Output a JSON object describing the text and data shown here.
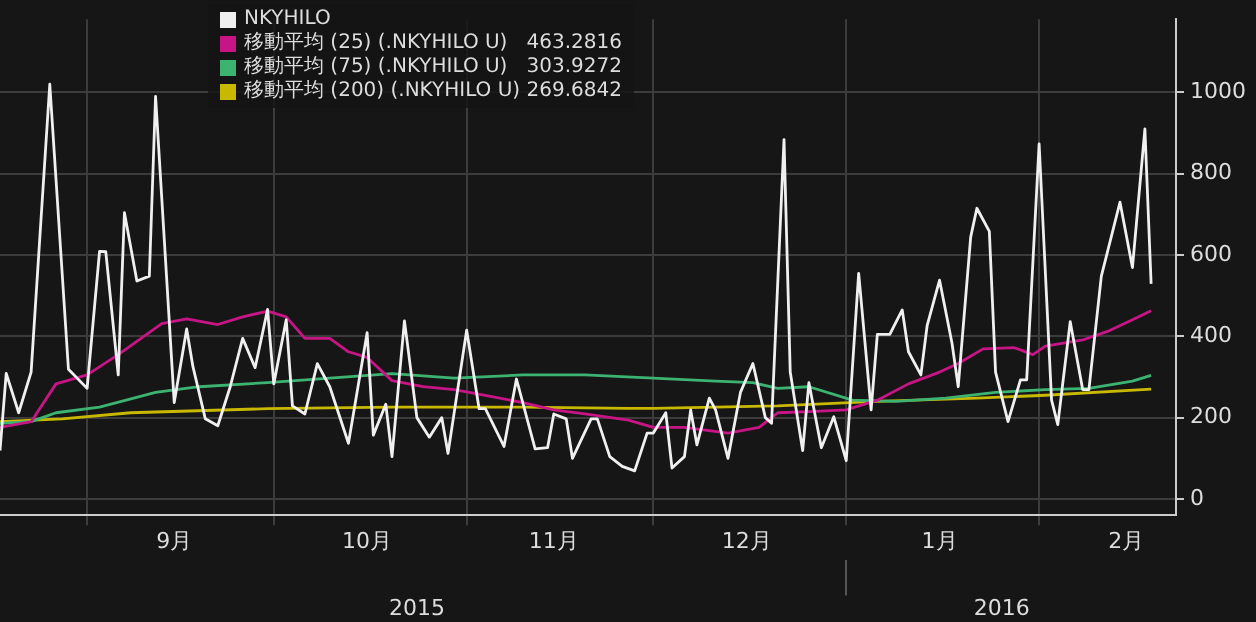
{
  "chart_data": {
    "type": "line",
    "legend": "top",
    "grid": true,
    "marker": "none",
    "xlim": [
      "2015-08-18",
      "2016-02-23"
    ],
    "xticks": [
      {
        "value": "2015-09-01",
        "label": null
      },
      {
        "value": "2015-09-15",
        "label": "9月"
      },
      {
        "value": "2015-10-01",
        "label": null
      },
      {
        "value": "2015-10-16",
        "label": "10月"
      },
      {
        "value": "2015-11-01",
        "label": null
      },
      {
        "value": "2015-11-15",
        "label": "11月"
      },
      {
        "value": "2015-12-01",
        "label": null
      },
      {
        "value": "2015-12-16",
        "label": "12月"
      },
      {
        "value": "2016-01-01",
        "label": null
      },
      {
        "value": "2016-01-16",
        "label": "1月"
      },
      {
        "value": "2016-02-01",
        "label": null
      },
      {
        "value": "2016-02-15",
        "label": "2月"
      }
    ],
    "x2lim": [
      "2015-08-18",
      "2016-02-23"
    ],
    "x2ticks": [
      {
        "value": "2015-10-24",
        "label": "2015"
      },
      {
        "value": "2016-01-01",
        "label": null
      },
      {
        "value": "2016-01-26",
        "label": "2016"
      }
    ],
    "ylim": [
      -40,
      1180
    ],
    "yticks": [
      0,
      200,
      400,
      600,
      800,
      1000
    ],
    "series": [
      {
        "name": "NKYHILO",
        "color": "#f0f0f0",
        "x": [
          "2015-08-18",
          "2015-08-19",
          "2015-08-21",
          "2015-08-23",
          "2015-08-26",
          "2015-08-29",
          "2015-09-01",
          "2015-09-03",
          "2015-09-04",
          "2015-09-06",
          "2015-09-07",
          "2015-09-09",
          "2015-09-11",
          "2015-09-12",
          "2015-09-15",
          "2015-09-17",
          "2015-09-18",
          "2015-09-20",
          "2015-09-22",
          "2015-09-24",
          "2015-09-26",
          "2015-09-28",
          "2015-09-30",
          "2015-10-01",
          "2015-10-03",
          "2015-10-04",
          "2015-10-06",
          "2015-10-08",
          "2015-10-10",
          "2015-10-13",
          "2015-10-16",
          "2015-10-17",
          "2015-10-19",
          "2015-10-20",
          "2015-10-22",
          "2015-10-24",
          "2015-10-26",
          "2015-10-28",
          "2015-10-29",
          "2015-11-01",
          "2015-11-03",
          "2015-11-04",
          "2015-11-07",
          "2015-11-09",
          "2015-11-12",
          "2015-11-14",
          "2015-11-15",
          "2015-11-17",
          "2015-11-18",
          "2015-11-21",
          "2015-11-22",
          "2015-11-24",
          "2015-11-26",
          "2015-11-28",
          "2015-11-30",
          "2015-12-01",
          "2015-12-03",
          "2015-12-04",
          "2015-12-06",
          "2015-12-07",
          "2015-12-08",
          "2015-12-10",
          "2015-12-11",
          "2015-12-13",
          "2015-12-15",
          "2015-12-17",
          "2015-12-19",
          "2015-12-20",
          "2015-12-22",
          "2015-12-23",
          "2015-12-25",
          "2015-12-26",
          "2015-12-28",
          "2015-12-30",
          "2016-01-01",
          "2016-01-03",
          "2016-01-05",
          "2016-01-06",
          "2016-01-08",
          "2016-01-10",
          "2016-01-11",
          "2016-01-13",
          "2016-01-14",
          "2016-01-16",
          "2016-01-18",
          "2016-01-19",
          "2016-01-21",
          "2016-01-22",
          "2016-01-24",
          "2016-01-25",
          "2016-01-27",
          "2016-01-29",
          "2016-01-30",
          "2016-02-01",
          "2016-02-03",
          "2016-02-04",
          "2016-02-06",
          "2016-02-08",
          "2016-02-09",
          "2016-02-11",
          "2016-02-14",
          "2016-02-16",
          "2016-02-18",
          "2016-02-19"
        ],
        "values": [
          119,
          309,
          212,
          312,
          1020,
          319,
          272,
          609,
          608,
          305,
          704,
          536,
          548,
          990,
          237,
          418,
          326,
          197,
          180,
          276,
          395,
          323,
          466,
          283,
          441,
          229,
          209,
          333,
          276,
          137,
          409,
          157,
          233,
          104,
          438,
          200,
          152,
          200,
          112,
          415,
          222,
          222,
          129,
          295,
          123,
          126,
          209,
          197,
          100,
          197,
          197,
          104,
          80,
          69,
          162,
          162,
          212,
          76,
          104,
          219,
          133,
          248,
          219,
          100,
          262,
          333,
          200,
          186,
          884,
          312,
          119,
          286,
          126,
          202,
          94,
          555,
          219,
          405,
          405,
          465,
          362,
          305,
          426,
          538,
          383,
          276,
          644,
          715,
          658,
          312,
          190,
          293,
          293,
          873,
          243,
          183,
          436,
          269,
          269,
          548,
          730,
          569,
          910,
          529
        ]
      },
      {
        "name": "移動平均 (25) (.NKYHILO U)   463.2816",
        "color": "#c71585",
        "x": [
          "2015-08-18",
          "2015-08-23",
          "2015-08-27",
          "2015-09-01",
          "2015-09-06",
          "2015-09-13",
          "2015-09-17",
          "2015-09-22",
          "2015-09-26",
          "2015-09-30",
          "2015-10-03",
          "2015-10-06",
          "2015-10-10",
          "2015-10-13",
          "2015-10-16",
          "2015-10-20",
          "2015-10-25",
          "2015-10-30",
          "2015-11-04",
          "2015-11-10",
          "2015-11-15",
          "2015-11-20",
          "2015-11-27",
          "2015-12-01",
          "2015-12-06",
          "2015-12-13",
          "2015-12-18",
          "2015-12-21",
          "2015-12-26",
          "2016-01-01",
          "2016-01-06",
          "2016-01-11",
          "2016-01-16",
          "2016-01-19",
          "2016-01-23",
          "2016-01-28",
          "2016-01-31",
          "2016-02-02",
          "2016-02-08",
          "2016-02-12",
          "2016-02-16",
          "2016-02-19"
        ],
        "values": [
          176,
          190,
          283,
          305,
          355,
          431,
          443,
          429,
          448,
          462,
          448,
          395,
          395,
          362,
          348,
          291,
          276,
          269,
          255,
          237,
          219,
          209,
          194,
          176,
          176,
          162,
          176,
          212,
          215,
          219,
          243,
          283,
          312,
          333,
          369,
          372,
          355,
          376,
          391,
          412,
          441,
          463
        ]
      },
      {
        "name": "移動平均 (75) (.NKYHILO U)   303.9272",
        "color": "#3cb371",
        "x": [
          "2015-08-18",
          "2015-08-23",
          "2015-08-27",
          "2015-09-03",
          "2015-09-12",
          "2015-09-19",
          "2015-09-30",
          "2015-10-10",
          "2015-10-20",
          "2015-10-30",
          "2015-11-10",
          "2015-11-20",
          "2015-12-01",
          "2015-12-11",
          "2015-12-17",
          "2015-12-21",
          "2015-12-26",
          "2016-01-02",
          "2016-01-09",
          "2016-01-17",
          "2016-01-25",
          "2016-02-02",
          "2016-02-09",
          "2016-02-16",
          "2016-02-19"
        ],
        "values": [
          186,
          190,
          212,
          226,
          262,
          276,
          286,
          297,
          308,
          297,
          305,
          305,
          297,
          290,
          286,
          272,
          276,
          243,
          240,
          248,
          262,
          269,
          272,
          290,
          304
        ]
      },
      {
        "name": "移動平均 (200) (.NKYHILO U) 269.6842",
        "color": "#c9b800",
        "x": [
          "2015-08-18",
          "2015-08-28",
          "2015-09-08",
          "2015-09-30",
          "2015-10-20",
          "2015-11-10",
          "2015-11-27",
          "2015-12-01",
          "2015-12-21",
          "2016-01-06",
          "2016-01-22",
          "2016-02-02",
          "2016-02-19"
        ],
        "values": [
          190,
          197,
          212,
          222,
          226,
          226,
          223,
          223,
          229,
          240,
          248,
          255,
          270
        ]
      }
    ]
  }
}
